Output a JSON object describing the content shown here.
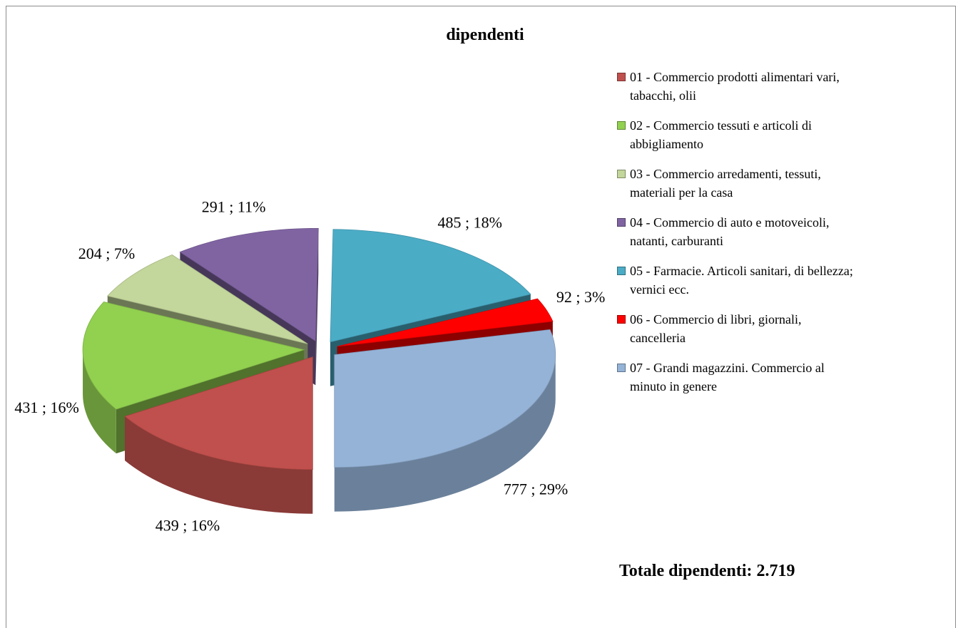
{
  "chart_data": {
    "type": "pie",
    "title": "dipendenti",
    "categories": [
      "01 - Commercio prodotti alimentari vari, tabacchi, olii",
      "02 - Commercio tessuti e articoli di abbigliamento",
      "03 - Commercio arredamenti, tessuti, materiali per la casa",
      "04 - Commercio di auto e motoveicoli, natanti, carburanti",
      "05 - Farmacie. Articoli sanitari, di bellezza; vernici ecc.",
      "06 - Commercio di libri, giornali, cancelleria",
      "07 - Grandi magazzini. Commercio al minuto in genere"
    ],
    "values": [
      439,
      431,
      204,
      291,
      485,
      92,
      777
    ],
    "value_labels": [
      "439 ; 16%",
      "431 ; 16%",
      "204 ; 7%",
      "291 ; 11%",
      "485 ; 18%",
      "92 ; 3%",
      "777 ; 29%"
    ],
    "colors": [
      "#c0504d",
      "#92d050",
      "#c3d69b",
      "#8064a2",
      "#4bacc6",
      "#ff0000",
      "#95b3d7"
    ],
    "legend": "right",
    "annotation": "Totale dipendenti: 2.719"
  }
}
